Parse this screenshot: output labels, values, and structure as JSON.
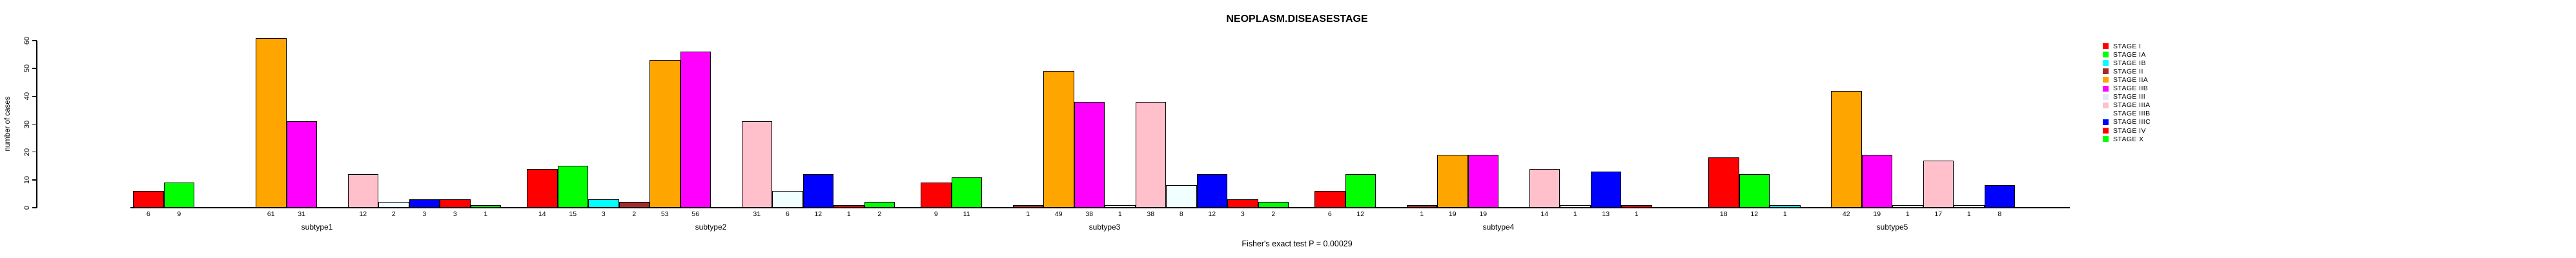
{
  "title": "NEOPLASM.DISEASESTAGE",
  "footer": "Fisher's exact test P = 0.00029",
  "ylabel": "number of cases",
  "chart_data": {
    "type": "bar",
    "title": "NEOPLASM.DISEASESTAGE",
    "xlabel": "",
    "ylabel": "number of cases",
    "ylim": [
      0,
      60
    ],
    "yticks": [
      0,
      10,
      20,
      30,
      40,
      50,
      60
    ],
    "grid": false,
    "legend_position": "right",
    "annotation": "Fisher's exact test P = 0.00029",
    "bar_value_labels_shown": true,
    "zero_value_bars_hidden": true,
    "categories": [
      "subtype1",
      "subtype2",
      "subtype3",
      "subtype4",
      "subtype5"
    ],
    "series": [
      {
        "name": "STAGE I",
        "color": "#FF0000",
        "values": [
          6,
          14,
          9,
          6,
          18
        ]
      },
      {
        "name": "STAGE IA",
        "color": "#00FF00",
        "values": [
          9,
          15,
          11,
          12,
          12
        ]
      },
      {
        "name": "STAGE IB",
        "color": "#00FFFF",
        "values": [
          0,
          3,
          0,
          0,
          1
        ]
      },
      {
        "name": "STAGE II",
        "color": "#A52A2A",
        "values": [
          0,
          2,
          1,
          1,
          0
        ]
      },
      {
        "name": "STAGE IIA",
        "color": "#FFA500",
        "values": [
          61,
          53,
          49,
          19,
          42
        ]
      },
      {
        "name": "STAGE IIB",
        "color": "#FF00FF",
        "values": [
          31,
          56,
          38,
          19,
          19
        ]
      },
      {
        "name": "STAGE III",
        "color": "#E6E6FA",
        "values": [
          0,
          0,
          1,
          0,
          1
        ]
      },
      {
        "name": "STAGE IIIA",
        "color": "#FFC0CB",
        "values": [
          12,
          31,
          38,
          14,
          17
        ]
      },
      {
        "name": "STAGE IIIB",
        "color": "#F0FFFF",
        "values": [
          2,
          6,
          8,
          1,
          1
        ]
      },
      {
        "name": "STAGE IIIC",
        "color": "#0000FF",
        "values": [
          3,
          12,
          12,
          13,
          8
        ]
      },
      {
        "name": "STAGE IV",
        "color": "#FF0000",
        "values": [
          3,
          1,
          3,
          1,
          0
        ]
      },
      {
        "name": "STAGE X",
        "color": "#00FF00",
        "values": [
          1,
          2,
          2,
          0,
          0
        ]
      }
    ]
  }
}
